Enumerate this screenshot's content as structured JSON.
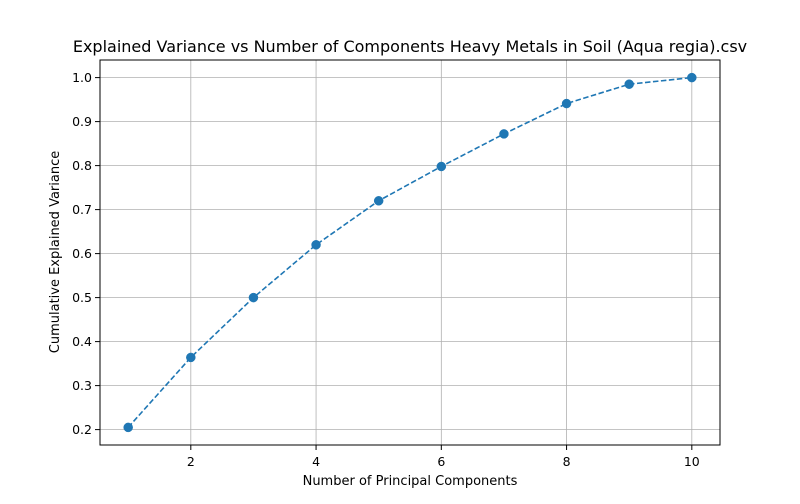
{
  "chart_data": {
    "type": "line",
    "title": "Explained Variance vs Number of Components Heavy Metals in Soil (Aqua regia).csv",
    "xlabel": "Number of Principal Components",
    "ylabel": "Cumulative Explained Variance",
    "x": [
      1,
      2,
      3,
      4,
      5,
      6,
      7,
      8,
      9,
      10
    ],
    "series": [
      {
        "values": [
          0.205,
          0.364,
          0.5,
          0.62,
          0.72,
          0.798,
          0.872,
          0.941,
          0.985,
          1.0
        ]
      }
    ],
    "xlim": [
      0.55,
      10.45
    ],
    "ylim": [
      0.165,
      1.04
    ],
    "xticks": [
      2,
      4,
      6,
      8,
      10
    ],
    "xtick_labels": [
      "2",
      "4",
      "6",
      "8",
      "10"
    ],
    "yticks": [
      0.2,
      0.3,
      0.4,
      0.5,
      0.6,
      0.7,
      0.8,
      0.9,
      1.0
    ],
    "ytick_labels": [
      "0.2",
      "0.3",
      "0.4",
      "0.5",
      "0.6",
      "0.7",
      "0.8",
      "0.9",
      "1.0"
    ],
    "grid": true,
    "line_style": "dashed",
    "marker": "circle",
    "colors": {
      "series": "#1f77b4",
      "grid": "#b0b0b0",
      "axes": "#000000"
    }
  }
}
